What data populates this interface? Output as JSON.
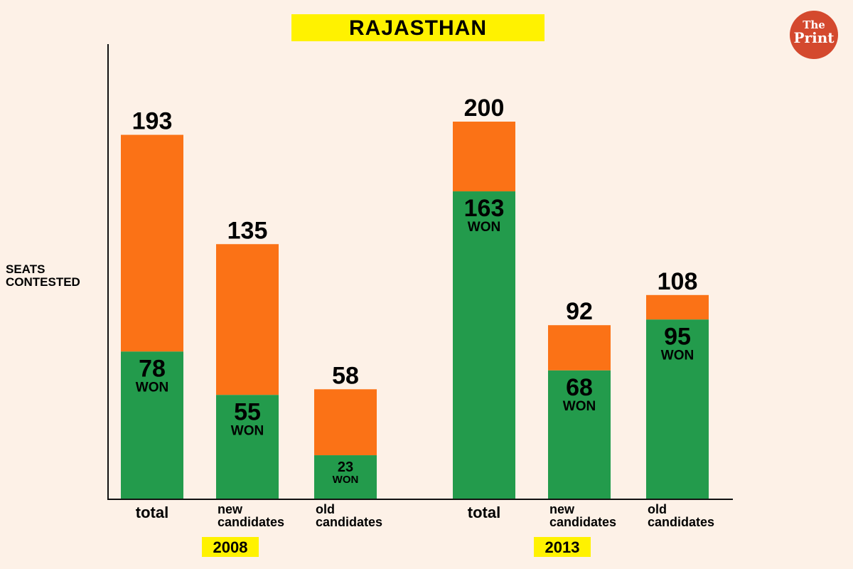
{
  "title": "RAJASTHAN",
  "logo": {
    "line1": "The",
    "line2": "Print"
  },
  "chart_data": {
    "type": "bar",
    "stacked": true,
    "title": "RAJASTHAN",
    "ylabel": "SEATS CONTESTED",
    "won_label": "WON",
    "groups": [
      {
        "year": "2008",
        "categories": [
          "total",
          "new candidates",
          "old candidates"
        ],
        "contested": [
          193,
          135,
          58
        ],
        "won": [
          78,
          55,
          23
        ]
      },
      {
        "year": "2013",
        "categories": [
          "total",
          "new candidates",
          "old candidates"
        ],
        "contested": [
          200,
          92,
          108
        ],
        "won": [
          163,
          68,
          95
        ]
      }
    ],
    "colors": {
      "contested": "#fb7216",
      "won": "#239b4c"
    },
    "ylim": [
      0,
      210
    ]
  }
}
